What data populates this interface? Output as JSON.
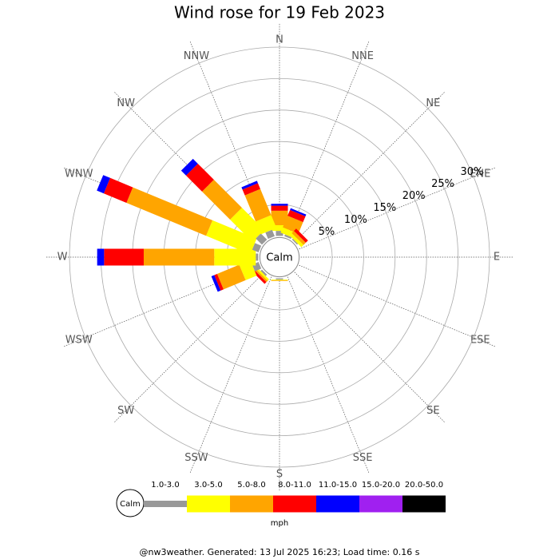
{
  "chart_data": {
    "type": "windrose",
    "title": "Wind rose for 19 Feb 2023",
    "directions": [
      "N",
      "NNE",
      "NE",
      "ENE",
      "E",
      "ESE",
      "SE",
      "SSE",
      "S",
      "SSW",
      "SW",
      "WSW",
      "W",
      "WNW",
      "NW",
      "NNW"
    ],
    "calm_label": "Calm",
    "unit": "mph",
    "rlim": [
      0,
      30
    ],
    "rticks": [
      {
        "value": 5,
        "label": "5%"
      },
      {
        "value": 10,
        "label": "10%"
      },
      {
        "value": 15,
        "label": "15%"
      },
      {
        "value": 20,
        "label": "20%"
      },
      {
        "value": 25,
        "label": "25%"
      },
      {
        "value": 30,
        "label": "30%"
      }
    ],
    "series": [
      {
        "name": "1.0-3.0",
        "color": "#999999",
        "values": [
          0.8,
          0.3,
          0.2,
          0,
          0,
          0,
          0,
          0,
          0.2,
          0,
          0.3,
          1.1,
          0.4,
          1.1,
          1.4,
          1.1
        ]
      },
      {
        "name": "3.0-5.0",
        "color": "#ffff00",
        "values": [
          0.9,
          0.9,
          0.5,
          0,
          0,
          0,
          0,
          0,
          0.1,
          0,
          0.3,
          1.9,
          6.6,
          7.6,
          5.0,
          2.2
        ]
      },
      {
        "name": "5.0-8.0",
        "color": "#ffa500",
        "values": [
          2.3,
          2.0,
          0.5,
          0,
          0,
          0,
          0,
          0,
          0.1,
          0,
          0.3,
          3.8,
          11.2,
          13.7,
          6.3,
          4.5
        ]
      },
      {
        "name": "8.0-11.0",
        "color": "#ff0000",
        "values": [
          0.8,
          1.0,
          0.5,
          0,
          0,
          0,
          0,
          0,
          0,
          0,
          0.4,
          0.5,
          6.3,
          3.9,
          3.6,
          1.0
        ]
      },
      {
        "name": "11.0-15.0",
        "color": "#0000ff",
        "values": [
          0.3,
          0.3,
          0,
          0,
          0,
          0,
          0,
          0,
          0,
          0,
          0,
          0.5,
          1.1,
          1.2,
          1.1,
          0.4
        ]
      },
      {
        "name": "15.0-20.0",
        "color": "#a020f0",
        "values": [
          0,
          0,
          0,
          0,
          0,
          0,
          0,
          0,
          0,
          0,
          0,
          0,
          0,
          0,
          0,
          0
        ]
      },
      {
        "name": "20.0-50.0",
        "color": "#000000",
        "values": [
          0,
          0,
          0,
          0,
          0,
          0,
          0,
          0,
          0,
          0,
          0,
          0,
          0,
          0,
          0,
          0
        ]
      }
    ],
    "footer": "@nw3weather.  Generated: 13 Jul 2025 16:23; Load time: 0.16 s"
  }
}
